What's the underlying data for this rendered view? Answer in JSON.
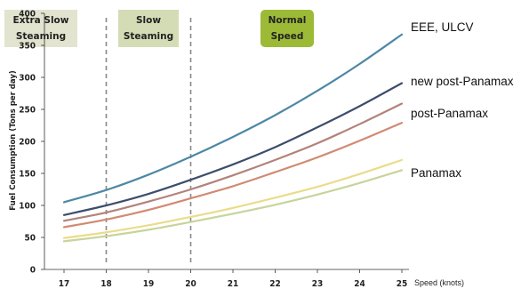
{
  "chart_data": {
    "type": "line",
    "xlabel": "Speed (knots)",
    "ylabel": "Fuel Consumption (Tons per day)",
    "x": [
      17,
      18,
      19,
      20,
      21,
      22,
      23,
      24,
      25
    ],
    "xlim": [
      17,
      25
    ],
    "ylim": [
      0,
      400
    ],
    "yticks": [
      0,
      50,
      100,
      150,
      200,
      250,
      300,
      350,
      400
    ],
    "grid": false,
    "series": [
      {
        "name": "EEE, ULCV",
        "color": "#4d88a6",
        "values": [
          105,
          124,
          148,
          176,
          207,
          241,
          279,
          321,
          367
        ]
      },
      {
        "name": "new post-Panamax",
        "color": "#3d4d6b",
        "values": [
          85,
          100,
          118,
          140,
          164,
          191,
          222,
          255,
          291
        ]
      },
      {
        "name": "post-Panamax",
        "color": "#b3827a",
        "values": [
          76,
          89,
          106,
          125,
          147,
          171,
          197,
          227,
          259
        ]
      },
      {
        "name": "",
        "color": "#d08a72",
        "values": [
          66,
          78,
          93,
          111,
          130,
          152,
          175,
          201,
          229
        ]
      },
      {
        "name": "Panamax",
        "color": "#eadc8a",
        "values": [
          49,
          58,
          69,
          82,
          96,
          112,
          129,
          149,
          171
        ]
      },
      {
        "name": "",
        "color": "#c7d49a",
        "values": [
          44,
          52,
          62,
          74,
          87,
          101,
          117,
          135,
          155
        ]
      }
    ],
    "zones": [
      {
        "label_line1": "Extra Slow",
        "label_line2": "Steaming",
        "color": "#e2e4cf",
        "x_start": 17,
        "x_end": 18
      },
      {
        "label_line1": "Slow",
        "label_line2": "Steaming",
        "color": "#d4dcb5",
        "x_start": 18,
        "x_end": 20
      },
      {
        "label_line1": "Normal",
        "label_line2": "Speed",
        "color": "#9dba37"
      }
    ],
    "dividers": [
      18,
      20
    ]
  }
}
